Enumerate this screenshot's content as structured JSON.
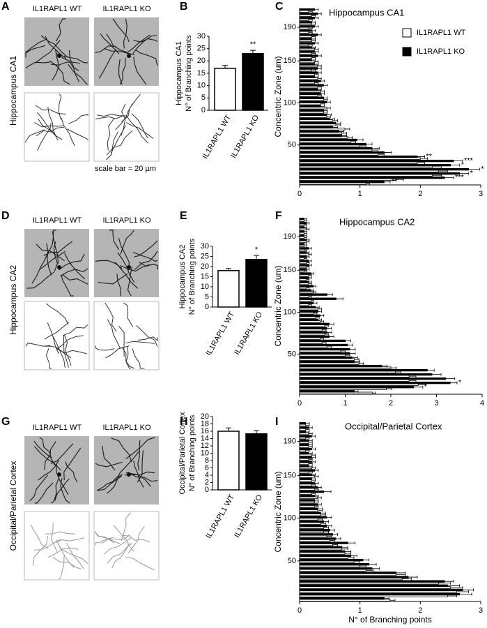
{
  "panels": [
    {
      "letter": "A",
      "region": "Hippocampus CA1",
      "images": [
        "IL1RAPL1 WT",
        "IL1RAPL1 KO"
      ],
      "scale_bar": "scale bar = 20 µm"
    },
    {
      "letter": "D",
      "region": "Hippocampus CA2",
      "images": [
        "IL1RAPL1 WT",
        "IL1RAPL1 KO"
      ]
    },
    {
      "letter": "G",
      "region": "Occipital/Parietal Cortex",
      "images": [
        "IL1RAPL1 WT",
        "IL1RAPL1 KO"
      ]
    }
  ],
  "chart_data": [
    {
      "type": "bar",
      "panel_label": "B",
      "ylabel": [
        "Hippocampus CA1",
        "N° of Branching points"
      ],
      "categories": [
        "IL1RAPL1 WT",
        "IL1RAPL1 KO"
      ],
      "values": [
        17,
        23
      ],
      "errors": [
        1.2,
        1.3
      ],
      "colors": [
        "#ffffff",
        "#000000"
      ],
      "significance": [
        null,
        "**"
      ],
      "ylim": [
        0,
        30
      ],
      "yticks": [
        0,
        5,
        10,
        15,
        20,
        25,
        30
      ]
    },
    {
      "type": "hbar",
      "panel_label": "C",
      "title": "Hippocampus CA1",
      "ylabel": "Concentric Zone (um)",
      "categories": [
        null,
        null,
        null,
        null,
        null,
        null,
        null,
        null,
        null,
        50,
        null,
        null,
        null,
        null,
        null,
        null,
        null,
        null,
        null,
        100,
        null,
        null,
        null,
        null,
        null,
        null,
        null,
        null,
        null,
        150,
        null,
        null,
        null,
        null,
        null,
        null,
        null,
        190,
        null,
        null,
        null,
        null
      ],
      "series": [
        {
          "name": "IL1RAPL1 WT",
          "color": "#ffffff",
          "values": [
            1.1,
            1.6,
            2.2,
            2.3,
            2.2,
            1.95,
            2.0,
            1.3,
            1.2,
            1.0,
            0.85,
            0.8,
            0.7,
            0.75,
            0.6,
            0.55,
            0.45,
            0.4,
            0.45,
            0.35,
            0.4,
            0.3,
            0.35,
            0.3,
            0.25,
            0.3,
            0.25,
            0.2,
            0.3,
            0.25,
            0.2,
            0.2,
            0.25,
            0.15,
            0.2,
            0.2,
            0.15,
            0.15,
            0.2,
            0.15,
            0.2,
            0.15
          ],
          "errors": [
            0.06,
            0.12,
            0.15,
            0.15,
            0.15,
            0.12,
            0.12,
            0.1,
            0.1,
            0.1,
            0.08,
            0.08,
            0.08,
            0.08,
            0.08,
            0.08,
            0.06,
            0.06,
            0.06,
            0.06,
            0.06,
            0.06,
            0.06,
            0.06,
            0.06,
            0.06,
            0.06,
            0.06,
            0.06,
            0.06,
            0.06,
            0.06,
            0.06,
            0.06,
            0.06,
            0.06,
            0.06,
            0.06,
            0.06,
            0.06,
            0.06,
            0.06
          ]
        },
        {
          "name": "IL1RAPL1 KO",
          "color": "#000000",
          "values": [
            1.4,
            2.4,
            2.65,
            2.8,
            2.5,
            2.55,
            1.95,
            1.4,
            1.2,
            1.1,
            0.95,
            0.7,
            0.65,
            0.55,
            0.6,
            0.5,
            0.45,
            0.4,
            0.35,
            0.45,
            0.4,
            0.35,
            0.3,
            0.4,
            0.35,
            0.25,
            0.3,
            0.3,
            0.25,
            0.2,
            0.3,
            0.25,
            0.2,
            0.25,
            0.2,
            0.3,
            0.2,
            0.25,
            0.2,
            0.25,
            0.3,
            0.25
          ],
          "errors": [
            0.1,
            0.15,
            0.15,
            0.18,
            0.15,
            0.15,
            0.12,
            0.12,
            0.12,
            0.1,
            0.1,
            0.08,
            0.08,
            0.08,
            0.08,
            0.08,
            0.08,
            0.06,
            0.06,
            0.06,
            0.06,
            0.06,
            0.06,
            0.06,
            0.06,
            0.06,
            0.06,
            0.06,
            0.06,
            0.06,
            0.06,
            0.06,
            0.06,
            0.06,
            0.06,
            0.06,
            0.06,
            0.06,
            0.06,
            0.06,
            0.06,
            0.06
          ],
          "significance": [
            "**",
            "***",
            "*",
            "*",
            "*",
            "***",
            "**",
            null,
            null,
            null,
            null,
            null,
            null,
            null,
            null,
            null,
            null,
            null,
            null,
            null,
            null,
            null,
            null,
            null,
            null,
            null,
            null,
            null,
            null,
            null,
            null,
            null,
            null,
            null,
            null,
            null,
            null,
            null,
            null,
            null,
            null,
            null
          ]
        }
      ],
      "xlim": [
        0,
        3
      ],
      "xticks": [
        0,
        1,
        2,
        3
      ],
      "legend": "top-right"
    },
    {
      "type": "bar",
      "panel_label": "E",
      "ylabel": [
        "Hippocampus CA2",
        "N° of Branching points"
      ],
      "categories": [
        "IL1RAPL1 WT",
        "IL1RAPL1 KO"
      ],
      "values": [
        18,
        23.5
      ],
      "errors": [
        1.0,
        2.0
      ],
      "colors": [
        "#ffffff",
        "#000000"
      ],
      "significance": [
        null,
        "*"
      ],
      "ylim": [
        0,
        30
      ],
      "yticks": [
        0,
        5,
        10,
        15,
        20,
        25,
        30
      ]
    },
    {
      "type": "hbar",
      "panel_label": "F",
      "title": "Hippocampus CA2",
      "ylabel": "Concentric Zone (um)",
      "categories": [
        null,
        null,
        null,
        null,
        null,
        null,
        null,
        null,
        null,
        50,
        null,
        null,
        null,
        null,
        null,
        null,
        null,
        null,
        null,
        100,
        null,
        null,
        null,
        null,
        null,
        null,
        null,
        null,
        null,
        150,
        null,
        null,
        null,
        null,
        null,
        null,
        null,
        190,
        null,
        null,
        null,
        null
      ],
      "series": [
        {
          "name": "IL1RAPL1 WT",
          "color": "#ffffff",
          "values": [
            1.6,
            1.9,
            2.6,
            2.4,
            2.4,
            2.1,
            2.0,
            1.3,
            1.2,
            1.0,
            0.9,
            0.6,
            0.5,
            0.45,
            0.55,
            0.5,
            0.55,
            0.45,
            0.35,
            0.3,
            0.4,
            0.2,
            0.25,
            0.2,
            0.3,
            0.15,
            0.2,
            0.15,
            0.2,
            0.1,
            0.15,
            0.15,
            0.1,
            0.2,
            0.1,
            0.1,
            0.15,
            0.1,
            0.1,
            0.15,
            0.1,
            0.1
          ],
          "errors": [
            0.06,
            0.12,
            0.15,
            0.15,
            0.15,
            0.12,
            0.12,
            0.1,
            0.1,
            0.1,
            0.1,
            0.1,
            0.08,
            0.08,
            0.08,
            0.08,
            0.08,
            0.08,
            0.08,
            0.08,
            0.08,
            0.06,
            0.06,
            0.06,
            0.06,
            0.06,
            0.06,
            0.06,
            0.06,
            0.06,
            0.06,
            0.06,
            0.06,
            0.06,
            0.06,
            0.06,
            0.06,
            0.06,
            0.06,
            0.06,
            0.06,
            0.06
          ]
        },
        {
          "name": "IL1RAPL1 KO",
          "color": "#000000",
          "values": [
            1.2,
            2.5,
            3.3,
            3.2,
            2.9,
            2.8,
            1.8,
            1.2,
            1.15,
            1.1,
            1.1,
            1.05,
            1.0,
            0.65,
            0.6,
            0.6,
            0.65,
            0.4,
            0.45,
            0.4,
            0.35,
            0.3,
            0.8,
            0.6,
            0.25,
            0.3,
            0.2,
            0.2,
            0.25,
            0.15,
            0.2,
            0.2,
            0.15,
            0.15,
            0.2,
            0.1,
            0.15,
            0.1,
            0.1,
            0.1,
            0.15,
            0.1
          ],
          "errors": [
            0.08,
            0.2,
            0.15,
            0.2,
            0.2,
            0.15,
            0.12,
            0.12,
            0.12,
            0.12,
            0.12,
            0.12,
            0.12,
            0.1,
            0.1,
            0.1,
            0.1,
            0.08,
            0.08,
            0.08,
            0.08,
            0.08,
            0.15,
            0.12,
            0.06,
            0.06,
            0.06,
            0.06,
            0.06,
            0.06,
            0.06,
            0.06,
            0.06,
            0.06,
            0.06,
            0.06,
            0.06,
            0.06,
            0.06,
            0.06,
            0.06,
            0.06
          ],
          "significance": [
            null,
            "*",
            "*",
            null,
            null,
            null,
            null,
            null,
            null,
            null,
            null,
            null,
            null,
            null,
            null,
            null,
            null,
            null,
            null,
            null,
            null,
            null,
            null,
            null,
            null,
            null,
            null,
            null,
            null,
            null,
            null,
            null,
            null,
            null,
            null,
            null,
            null,
            null,
            null,
            null,
            null,
            null
          ]
        }
      ],
      "xlim": [
        0,
        4
      ],
      "xticks": [
        0,
        1,
        2,
        3,
        4
      ]
    },
    {
      "type": "bar",
      "panel_label": "H",
      "ylabel": [
        "Occipital/Parietal Cortex",
        "N° of Branching points"
      ],
      "categories": [
        "IL1RAPL1 WT",
        "IL1RAPL1 KO"
      ],
      "values": [
        16,
        15.3
      ],
      "errors": [
        0.9,
        0.9
      ],
      "colors": [
        "#ffffff",
        "#000000"
      ],
      "significance": [
        null,
        null
      ],
      "ylim": [
        0,
        20
      ],
      "yticks": [
        0,
        2,
        4,
        6,
        8,
        10,
        12,
        14,
        16,
        18,
        20
      ]
    },
    {
      "type": "hbar",
      "panel_label": "I",
      "title": "Occipital/Parietal Cortex",
      "ylabel": "Concentric Zone (um)",
      "xlabel": "N° of Branching points",
      "categories": [
        null,
        null,
        null,
        null,
        null,
        null,
        null,
        null,
        null,
        50,
        null,
        null,
        null,
        null,
        null,
        null,
        null,
        null,
        null,
        100,
        null,
        null,
        null,
        null,
        null,
        null,
        null,
        null,
        null,
        150,
        null,
        null,
        null,
        null,
        null,
        null,
        null,
        190,
        null,
        null,
        null,
        null
      ],
      "series": [
        {
          "name": "IL1RAPL1 WT",
          "color": "#ffffff",
          "values": [
            1.5,
            2.45,
            2.6,
            2.5,
            2.3,
            1.7,
            1.6,
            1.1,
            1.0,
            0.9,
            0.8,
            0.75,
            0.7,
            0.55,
            0.5,
            0.45,
            0.4,
            0.4,
            0.35,
            0.3,
            0.35,
            0.3,
            0.25,
            0.25,
            0.3,
            0.2,
            0.25,
            0.2,
            0.2,
            0.25,
            0.15,
            0.2,
            0.15,
            0.15,
            0.2,
            0.1,
            0.15,
            0.15,
            0.1,
            0.15,
            0.1,
            0.1
          ],
          "errors": [
            0.08,
            0.15,
            0.2,
            0.2,
            0.2,
            0.15,
            0.15,
            0.12,
            0.1,
            0.1,
            0.1,
            0.1,
            0.1,
            0.08,
            0.08,
            0.08,
            0.08,
            0.08,
            0.08,
            0.08,
            0.08,
            0.08,
            0.06,
            0.06,
            0.06,
            0.06,
            0.06,
            0.06,
            0.06,
            0.06,
            0.06,
            0.06,
            0.06,
            0.06,
            0.06,
            0.06,
            0.06,
            0.06,
            0.06,
            0.06,
            0.06,
            0.06
          ]
        },
        {
          "name": "IL1RAPL1 KO",
          "color": "#000000",
          "values": [
            1.4,
            2.65,
            2.7,
            2.45,
            2.4,
            1.8,
            1.6,
            1.2,
            1.15,
            1.05,
            0.85,
            0.75,
            0.7,
            0.8,
            0.6,
            0.55,
            0.5,
            0.45,
            0.4,
            0.45,
            0.35,
            0.3,
            0.3,
            0.25,
            0.25,
            0.4,
            0.3,
            0.25,
            0.2,
            0.2,
            0.25,
            0.15,
            0.2,
            0.2,
            0.15,
            0.2,
            0.15,
            0.15,
            0.2,
            0.1,
            0.15,
            0.1
          ],
          "errors": [
            0.08,
            0.2,
            0.18,
            0.2,
            0.15,
            0.15,
            0.15,
            0.12,
            0.12,
            0.1,
            0.1,
            0.1,
            0.1,
            0.12,
            0.08,
            0.08,
            0.08,
            0.08,
            0.08,
            0.08,
            0.08,
            0.08,
            0.06,
            0.06,
            0.06,
            0.12,
            0.06,
            0.06,
            0.06,
            0.06,
            0.06,
            0.06,
            0.06,
            0.06,
            0.06,
            0.06,
            0.06,
            0.06,
            0.06,
            0.06,
            0.06,
            0.06
          ]
        }
      ],
      "xlim": [
        0,
        3
      ],
      "xticks": [
        0,
        1,
        2,
        3
      ]
    }
  ]
}
